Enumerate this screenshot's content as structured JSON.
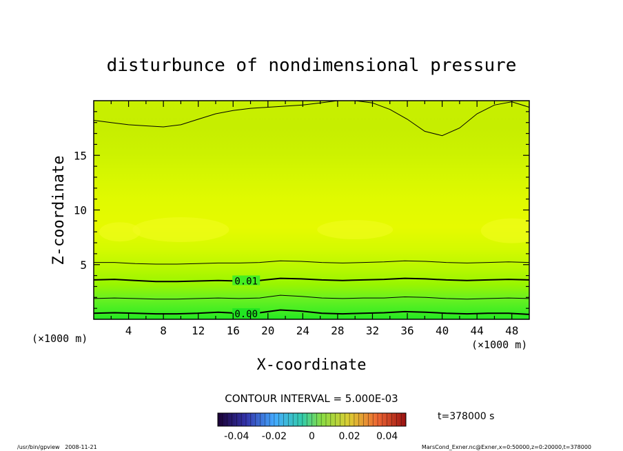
{
  "chart_data": {
    "type": "heatmap",
    "title": "disturbunce of nondimensional pressure",
    "xlabel": "X-coordinate",
    "ylabel": "Z-coordinate",
    "x_unit_left": "(×1000 m)",
    "x_unit_right": "(×1000 m)",
    "xlim": [
      0,
      50
    ],
    "ylim": [
      0,
      20
    ],
    "x_ticks": [
      "4",
      "8",
      "12",
      "16",
      "20",
      "24",
      "28",
      "32",
      "36",
      "40",
      "44",
      "48"
    ],
    "y_ticks": [
      "5",
      "10",
      "15"
    ],
    "x_tick_values": [
      4,
      8,
      12,
      16,
      20,
      24,
      28,
      32,
      36,
      40,
      44,
      48
    ],
    "y_tick_values": [
      5,
      10,
      15
    ],
    "contour_interval_label": "CONTOUR INTERVAL = 5.000E-03",
    "contour_labels": [
      {
        "text": "0.01",
        "x": 17.5,
        "z": 3.5
      },
      {
        "text": "0.00",
        "x": 17.5,
        "z": 0.5
      }
    ],
    "colorbar": {
      "min": -0.05,
      "max": 0.05,
      "tick_labels": [
        "-0.04",
        "-0.02",
        "0",
        "0.02",
        "0.04"
      ],
      "tick_values": [
        -0.04,
        -0.02,
        0,
        0.02,
        0.04
      ]
    },
    "time_label": "t=378000 s",
    "footer_left": "/usr/bin/gpview   2008-11-21",
    "footer_right": "MarsCond_Exner.nc@Exner,x=0:50000,z=0:20000,t=378000",
    "contours": [
      {
        "level": 0.0,
        "bold": true,
        "z": [
          0.55,
          0.6,
          0.55,
          0.5,
          0.5,
          0.55,
          0.65,
          0.55,
          0.6,
          0.85,
          0.75,
          0.55,
          0.5,
          0.55,
          0.6,
          0.7,
          0.65,
          0.55,
          0.5,
          0.55,
          0.55,
          0.45
        ]
      },
      {
        "level": 0.005,
        "bold": false,
        "z": [
          1.9,
          1.95,
          1.9,
          1.85,
          1.85,
          1.9,
          1.95,
          1.9,
          1.95,
          2.2,
          2.1,
          1.95,
          1.9,
          1.95,
          1.95,
          2.05,
          2.0,
          1.9,
          1.85,
          1.9,
          1.95,
          1.9
        ]
      },
      {
        "level": 0.01,
        "bold": true,
        "z": [
          3.6,
          3.65,
          3.55,
          3.45,
          3.45,
          3.5,
          3.55,
          3.5,
          3.55,
          3.75,
          3.7,
          3.6,
          3.55,
          3.6,
          3.65,
          3.75,
          3.7,
          3.6,
          3.55,
          3.6,
          3.65,
          3.6
        ]
      },
      {
        "level": 0.015,
        "bold": false,
        "z": [
          5.2,
          5.2,
          5.1,
          5.05,
          5.05,
          5.1,
          5.15,
          5.15,
          5.2,
          5.35,
          5.3,
          5.2,
          5.15,
          5.2,
          5.25,
          5.35,
          5.3,
          5.2,
          5.15,
          5.2,
          5.25,
          5.2
        ]
      }
    ],
    "top_contour": {
      "level": 0.015,
      "x": [
        0,
        2,
        4,
        6,
        8,
        10,
        12,
        14,
        16,
        18,
        20,
        22,
        24,
        26,
        28,
        30,
        32,
        34,
        36,
        38,
        40,
        42,
        44,
        46,
        48,
        50
      ],
      "z": [
        18.2,
        18.0,
        17.8,
        17.7,
        17.6,
        17.8,
        18.3,
        18.8,
        19.1,
        19.3,
        19.4,
        19.5,
        19.6,
        19.8,
        20,
        20,
        19.8,
        19.2,
        18.3,
        17.2,
        16.8,
        17.5,
        18.8,
        19.6,
        19.9,
        19.4
      ]
    },
    "colors": {
      "bottom": "#22e622",
      "mid": "#ccff00",
      "band": "#d8f500",
      "top": "#c8f000"
    }
  }
}
